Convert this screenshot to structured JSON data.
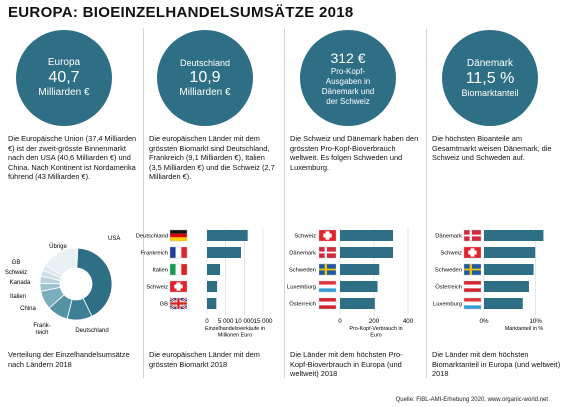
{
  "title": "EUROPA: BIOEINZELHANDELSUMSÄTZE 2018",
  "source": "Quelle: FiBL-AMI-Erhebung 2020, www.organic-world.net",
  "colors": {
    "accent": "#2f6f86",
    "bar": "#2f6f86",
    "grid": "#c7cfd4"
  },
  "columns": [
    {
      "circle": [
        "Europa",
        "40,7",
        "Milliarden €"
      ],
      "text": "Die Europäische Union (37,4 Milliarden €) ist der zweit-grösste Binnenmarkt nach den USA (40,6 Milliarden €) und China. Nach Kontinent ist Nordamerika führend (43 Milliarden €).",
      "caption": "Verteilung der Einzelhandelsumsätze nach Ländern 2018"
    },
    {
      "circle": [
        "Deutschland",
        "10,9",
        "Milliarden €"
      ],
      "text": "Die europäischen Länder mit dem grössten Biomarkt sind Deutschland, Frankreich (9,1 Milliarden €), Italien (3,5 Milliarden €) und die Schweiz (2,7 Milliarden €).",
      "caption": "Die europäischen Länder mit dem grössten Biomarkt 2018"
    },
    {
      "circle": [
        "312 €",
        "Pro-Kopf-",
        "Ausgaben in",
        "Dänemark und",
        "der Schweiz"
      ],
      "text": "Die Schweiz und Dänemark haben den grössten Pro-Kopf-Bioverbrauch weltweit. Es folgen Schweden und Luxemburg.",
      "caption": "Die Länder mit dem höchsten Pro-Kopf-Bioverbrauch in Europa (und weltweit) 2018"
    },
    {
      "circle": [
        "Dänemark",
        "11,5 %",
        "Biomarktanteil"
      ],
      "text": "Die höchsten Bioanteile am Gesamtmarkt weisen Dänemark, die Schweiz und Schweden auf.",
      "caption": "Die Länder mit dem höchsten Biomarktanteil in Europa (und weltweit) 2018"
    }
  ],
  "chart_data": [
    {
      "type": "pie",
      "style": "donut",
      "categories": [
        "USA",
        "Deutschland",
        "Frankreich",
        "China",
        "Italien",
        "Kanada",
        "Schweiz",
        "GB",
        "Übrige"
      ],
      "values": [
        40.6,
        10.9,
        9.1,
        8.1,
        3.5,
        3.1,
        2.7,
        2.5,
        16.4
      ],
      "colors": [
        "#2f6f86",
        "#3d7f95",
        "#5592a6",
        "#7aaebf",
        "#9cc3d0",
        "#b6d3dd",
        "#cbe0e8",
        "#dde9ee",
        "#eaf1f4"
      ]
    },
    {
      "type": "bar",
      "orientation": "horizontal",
      "categories": [
        "Deutschland",
        "Frankreich",
        "Italien",
        "Schweiz",
        "GB"
      ],
      "values": [
        10900,
        9100,
        3500,
        2700,
        2500
      ],
      "xlim": [
        0,
        15000
      ],
      "ticks": [
        "0",
        "5 000",
        "10 000",
        "15 000"
      ],
      "xlabel": "Einzelhandelsverkäufe in Millionen Euro"
    },
    {
      "type": "bar",
      "orientation": "horizontal",
      "categories": [
        "Schweiz",
        "Dänemark",
        "Schweden",
        "Luxemburg",
        "Österreich"
      ],
      "values": [
        312,
        312,
        231,
        221,
        205
      ],
      "xlim": [
        0,
        400
      ],
      "ticks": [
        "0",
        "200",
        "400"
      ],
      "xlabel": "Pro-Kopf-Verbrauch in Euro"
    },
    {
      "type": "bar",
      "orientation": "horizontal",
      "categories": [
        "Dänemark",
        "Schweiz",
        "Schweden",
        "Österreich",
        "Luxemburg"
      ],
      "values": [
        11.5,
        9.9,
        9.6,
        8.7,
        7.5
      ],
      "xlim": [
        0,
        12
      ],
      "ticks": [
        "0%",
        "10%"
      ],
      "xlabel": "Marktanteil in %"
    }
  ]
}
